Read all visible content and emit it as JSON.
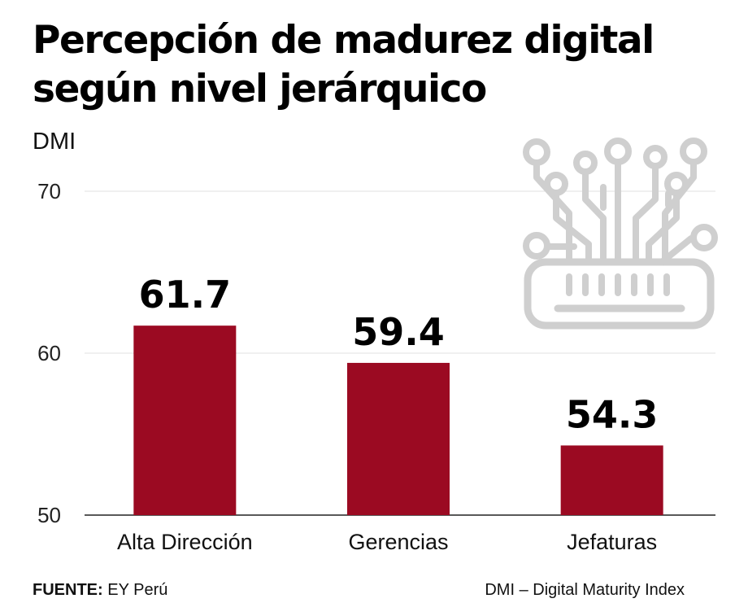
{
  "chart_data": {
    "type": "bar",
    "title": "Percepción de madurez digital según nivel jerárquico",
    "title_lines": [
      "Percepción de madurez digital",
      "según nivel jerárquico"
    ],
    "ylabel": "DMI",
    "xlabel": "",
    "categories": [
      "Alta Dirección",
      "Gerencias",
      "Jefaturas"
    ],
    "values": [
      61.7,
      59.4,
      54.3
    ],
    "value_labels": [
      "61.7",
      "59.4",
      "54.3"
    ],
    "ylim": [
      50,
      70
    ],
    "yticks": [
      50,
      60,
      70
    ],
    "grid": true,
    "bar_color": "#9b0a22",
    "grid_color": "#e2e2e2",
    "axis_color": "#222222",
    "icon_color": "#cfcfcf"
  },
  "decoration": {
    "icon": "circuit-chip-icon"
  },
  "footer": {
    "source_label": "FUENTE:",
    "source_value": "EY Perú",
    "note": "DMI – Digital Maturity Index"
  }
}
